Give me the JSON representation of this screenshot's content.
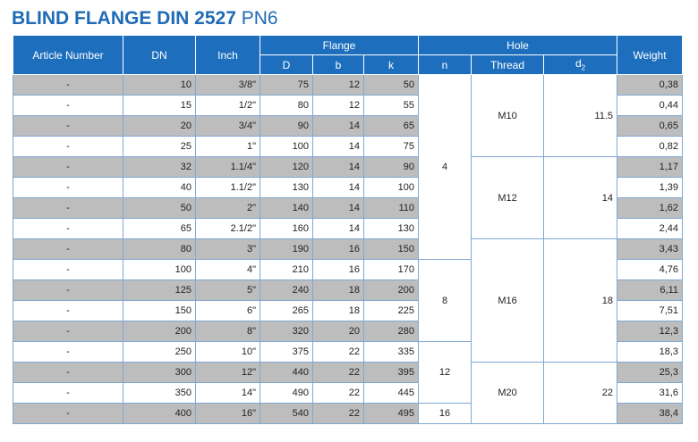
{
  "title": {
    "main": "BLIND FLANGE DIN 2527",
    "pn": "PN6"
  },
  "headers": {
    "article": "Article Number",
    "dn": "DN",
    "inch": "Inch",
    "flange": "Flange",
    "hole": "Hole",
    "weight": "Weight",
    "D": "D",
    "b": "b",
    "k": "k",
    "n": "n",
    "thread": "Thread",
    "d2_base": "d",
    "d2_sub": "2"
  },
  "rows": [
    {
      "article": "-",
      "dn": "10",
      "inch": "3/8\"",
      "D": "75",
      "b": "12",
      "k": "50",
      "weight": "0,38"
    },
    {
      "article": "-",
      "dn": "15",
      "inch": "1/2\"",
      "D": "80",
      "b": "12",
      "k": "55",
      "weight": "0,44"
    },
    {
      "article": "-",
      "dn": "20",
      "inch": "3/4\"",
      "D": "90",
      "b": "14",
      "k": "65",
      "weight": "0,65"
    },
    {
      "article": "-",
      "dn": "25",
      "inch": "1\"",
      "D": "100",
      "b": "14",
      "k": "75",
      "weight": "0,82"
    },
    {
      "article": "-",
      "dn": "32",
      "inch": "1.1/4\"",
      "D": "120",
      "b": "14",
      "k": "90",
      "weight": "1,17"
    },
    {
      "article": "-",
      "dn": "40",
      "inch": "1.1/2\"",
      "D": "130",
      "b": "14",
      "k": "100",
      "weight": "1,39"
    },
    {
      "article": "-",
      "dn": "50",
      "inch": "2\"",
      "D": "140",
      "b": "14",
      "k": "110",
      "weight": "1,62"
    },
    {
      "article": "-",
      "dn": "65",
      "inch": "2.1/2\"",
      "D": "160",
      "b": "14",
      "k": "130",
      "weight": "2,44"
    },
    {
      "article": "-",
      "dn": "80",
      "inch": "3\"",
      "D": "190",
      "b": "16",
      "k": "150",
      "weight": "3,43"
    },
    {
      "article": "-",
      "dn": "100",
      "inch": "4\"",
      "D": "210",
      "b": "16",
      "k": "170",
      "weight": "4,76"
    },
    {
      "article": "-",
      "dn": "125",
      "inch": "5\"",
      "D": "240",
      "b": "18",
      "k": "200",
      "weight": "6,11"
    },
    {
      "article": "-",
      "dn": "150",
      "inch": "6\"",
      "D": "265",
      "b": "18",
      "k": "225",
      "weight": "7,51"
    },
    {
      "article": "-",
      "dn": "200",
      "inch": "8\"",
      "D": "320",
      "b": "20",
      "k": "280",
      "weight": "12,3"
    },
    {
      "article": "-",
      "dn": "250",
      "inch": "10\"",
      "D": "375",
      "b": "22",
      "k": "335",
      "weight": "18,3"
    },
    {
      "article": "-",
      "dn": "300",
      "inch": "12\"",
      "D": "440",
      "b": "22",
      "k": "395",
      "weight": "25,3"
    },
    {
      "article": "-",
      "dn": "350",
      "inch": "14\"",
      "D": "490",
      "b": "22",
      "k": "445",
      "weight": "31,6"
    },
    {
      "article": "-",
      "dn": "400",
      "inch": "16\"",
      "D": "540",
      "b": "22",
      "k": "495",
      "weight": "38,4"
    }
  ],
  "groups": {
    "n": [
      {
        "start": 0,
        "span": 9,
        "value": "4"
      },
      {
        "start": 9,
        "span": 4,
        "value": "8"
      },
      {
        "start": 13,
        "span": 3,
        "value": "12"
      },
      {
        "start": 16,
        "span": 1,
        "value": "16"
      }
    ],
    "thread": [
      {
        "start": 0,
        "span": 4,
        "value": "M10",
        "d2": "11.5"
      },
      {
        "start": 4,
        "span": 4,
        "value": "M12",
        "d2": "14"
      },
      {
        "start": 8,
        "span": 6,
        "value": "M16",
        "d2": "18"
      },
      {
        "start": 14,
        "span": 3,
        "value": "M20",
        "d2": "22"
      }
    ]
  },
  "colors": {
    "title": "#1f6bb5",
    "header_bg": "#1d6fbe",
    "row_gray": "#bdbdbd",
    "border": "#7fa8d2"
  }
}
